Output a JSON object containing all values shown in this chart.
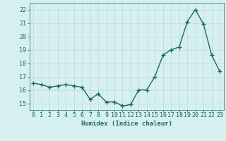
{
  "x": [
    0,
    1,
    2,
    3,
    4,
    5,
    6,
    7,
    8,
    9,
    10,
    11,
    12,
    13,
    14,
    15,
    16,
    17,
    18,
    19,
    20,
    21,
    22,
    23
  ],
  "y": [
    16.5,
    16.4,
    16.2,
    16.3,
    16.4,
    16.3,
    16.2,
    15.3,
    15.7,
    15.1,
    15.1,
    14.8,
    14.9,
    16.0,
    16.0,
    17.0,
    18.6,
    19.0,
    19.2,
    21.1,
    22.0,
    20.9,
    18.6,
    17.4
  ],
  "line_color": "#1a6b5a",
  "marker": "+",
  "bg_color": "#d6f0f0",
  "grid_color": "#b8dada",
  "xlabel": "Humidex (Indice chaleur)",
  "xlim": [
    -0.5,
    23.5
  ],
  "ylim": [
    14.5,
    22.5
  ],
  "xticks": [
    0,
    1,
    2,
    3,
    4,
    5,
    6,
    7,
    8,
    9,
    10,
    11,
    12,
    13,
    14,
    15,
    16,
    17,
    18,
    19,
    20,
    21,
    22,
    23
  ],
  "yticks": [
    15,
    16,
    17,
    18,
    19,
    20,
    21,
    22
  ],
  "label_fontsize": 6.5,
  "tick_fontsize": 6.0,
  "linewidth": 1.0,
  "markersize": 4,
  "markeredgewidth": 1.0
}
